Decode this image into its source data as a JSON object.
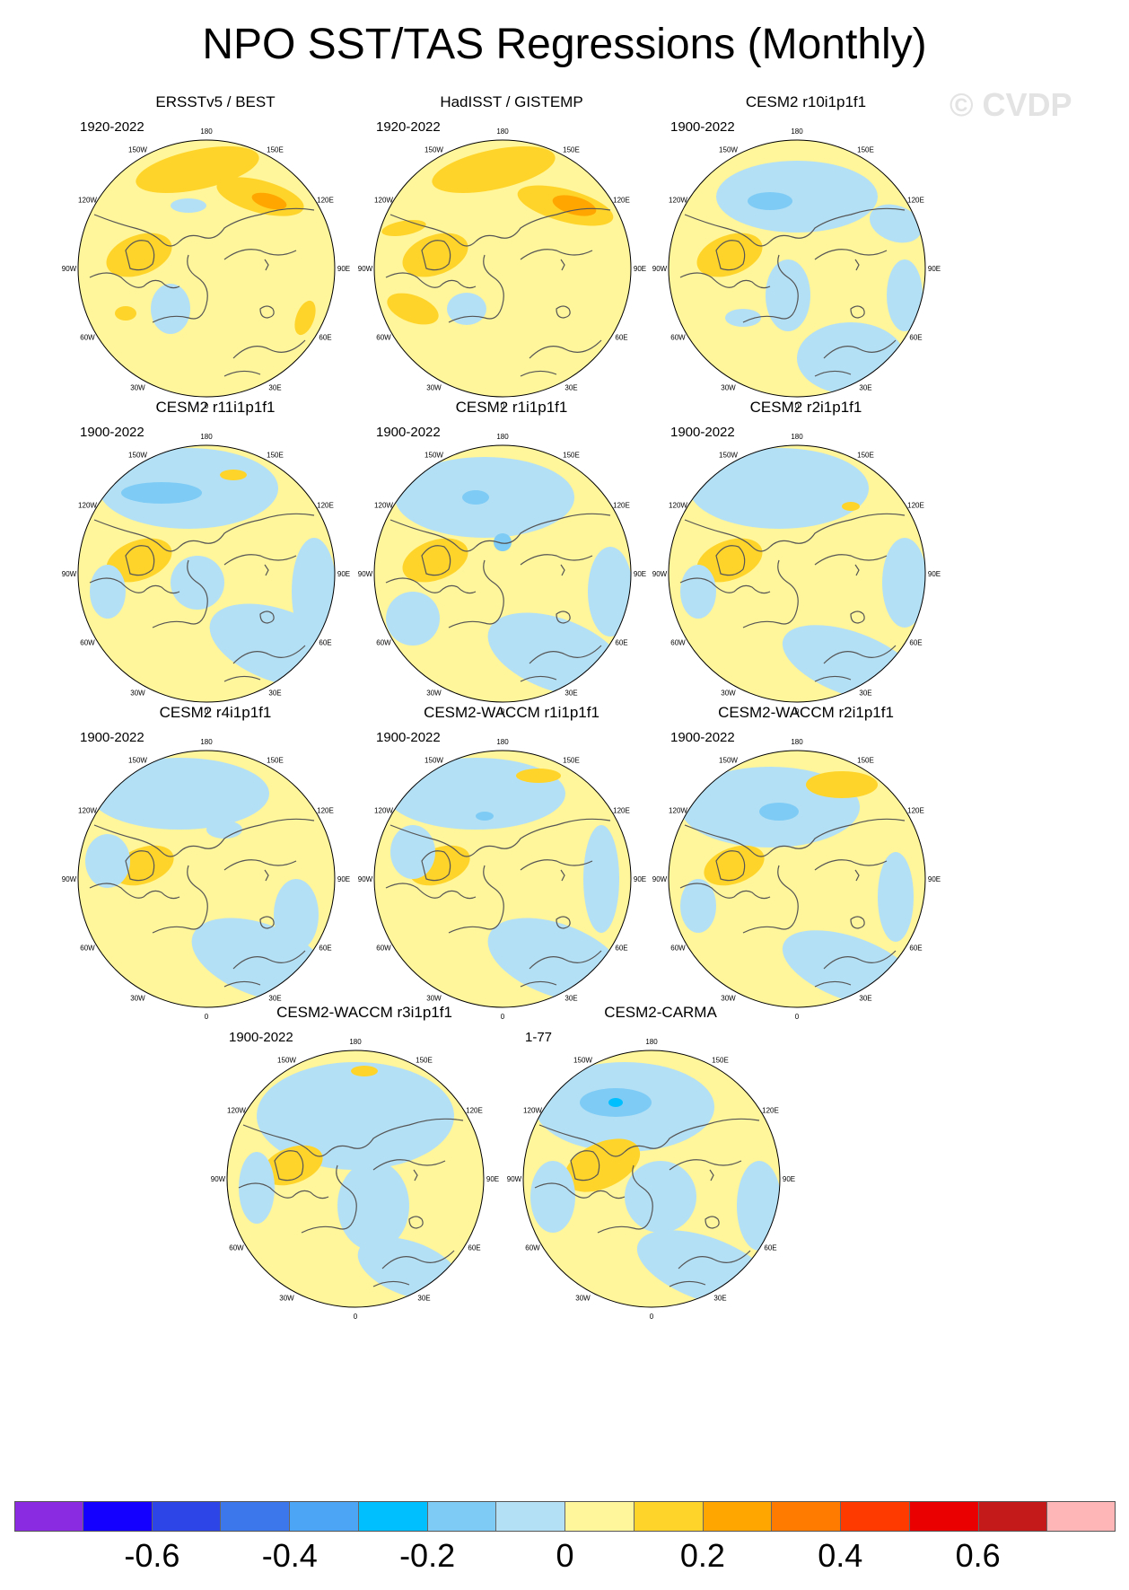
{
  "title": "NPO SST/TAS Regressions (Monthly)",
  "watermark": "© CVDP",
  "lon_labels": [
    "180",
    "150E",
    "120E",
    "90E",
    "60E",
    "30E",
    "0",
    "30W",
    "60W",
    "90W",
    "120W",
    "150W"
  ],
  "panels": [
    {
      "title": "ERSSTv5 / BEST",
      "years": "1920-2022"
    },
    {
      "title": "HadISST / GISTEMP",
      "years": "1920-2022"
    },
    {
      "title": "CESM2 r10i1p1f1",
      "years": "1900-2022"
    },
    {
      "title": "CESM2 r11i1p1f1",
      "years": "1900-2022"
    },
    {
      "title": "CESM2 r1i1p1f1",
      "years": "1900-2022"
    },
    {
      "title": "CESM2 r2i1p1f1",
      "years": "1900-2022"
    },
    {
      "title": "CESM2 r4i1p1f1",
      "years": "1900-2022"
    },
    {
      "title": "CESM2-WACCM r1i1p1f1",
      "years": "1900-2022"
    },
    {
      "title": "CESM2-WACCM r2i1p1f1",
      "years": "1900-2022"
    },
    {
      "title": "CESM2-WACCM r3i1p1f1",
      "years": "1900-2022"
    },
    {
      "title": "CESM2-CARMA",
      "years": "1-77"
    }
  ],
  "colorbar": {
    "colors": [
      "#8a2be2",
      "#1400ff",
      "#2d44e6",
      "#3c78eb",
      "#4ca6f5",
      "#00bfff",
      "#7ecbf5",
      "#b4e0f5",
      "#fff59a",
      "#ffd42a",
      "#ffa600",
      "#ff7b00",
      "#ff3a00",
      "#ea0000",
      "#c41a1a",
      "#ffb6b6"
    ],
    "tick_labels": [
      "-0.6",
      "-0.4",
      "-0.2",
      "0",
      "0.2",
      "0.4",
      "0.6"
    ]
  }
}
